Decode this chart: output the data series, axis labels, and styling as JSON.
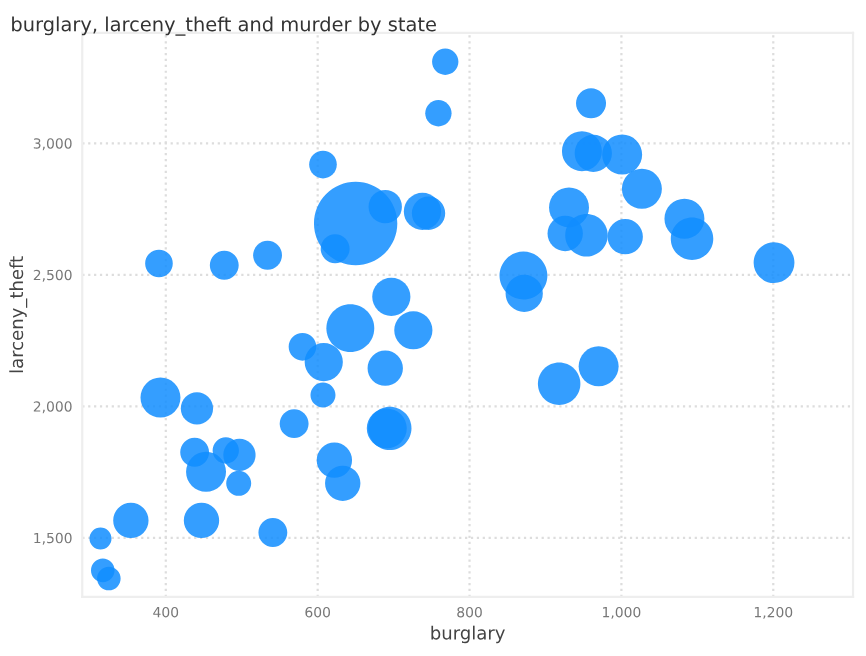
{
  "chart_data": {
    "type": "bubble",
    "title": "burglary, larceny_theft and murder by state",
    "xlabel": "burglary",
    "ylabel": "larceny_theft",
    "color": "#118dff",
    "x": [
      768,
      759,
      607,
      650,
      689,
      623,
      738,
      746,
      391,
      477,
      534,
      960,
      948,
      963,
      1001,
      1027,
      931,
      926,
      954,
      1005,
      1083,
      1093,
      1201,
      871,
      872,
      697,
      643,
      726,
      580,
      608,
      689,
      607,
      393,
      441,
      569,
      695,
      691,
      438,
      479,
      497,
      622,
      453,
      496,
      633,
      354,
      447,
      541,
      314,
      317,
      325,
      918,
      970
    ],
    "values": [
      3310,
      3114,
      2919,
      2695,
      2759,
      2599,
      2741,
      2734,
      2543,
      2536,
      2574,
      3152,
      2970,
      2962,
      2957,
      2827,
      2756,
      2657,
      2650,
      2645,
      2713,
      2637,
      2546,
      2497,
      2429,
      2416,
      2297,
      2289,
      2226,
      2168,
      2145,
      2043,
      2033,
      1992,
      1934,
      1916,
      1916,
      1825,
      1832,
      1815,
      1795,
      1751,
      1707,
      1707,
      1566,
      1566,
      1520,
      1497,
      1376,
      1345,
      2086,
      2152
    ],
    "sizes": [
      0.1,
      0.1,
      0.11,
      1,
      0.16,
      0.12,
      0.2,
      0.16,
      0.11,
      0.12,
      0.12,
      0.13,
      0.23,
      0.2,
      0.23,
      0.23,
      0.23,
      0.18,
      0.26,
      0.18,
      0.23,
      0.26,
      0.24,
      0.33,
      0.2,
      0.21,
      0.33,
      0.21,
      0.11,
      0.21,
      0.18,
      0.09,
      0.23,
      0.15,
      0.12,
      0.27,
      0.23,
      0.12,
      0.1,
      0.15,
      0.18,
      0.23,
      0.09,
      0.18,
      0.18,
      0.18,
      0.12,
      0.07,
      0.08,
      0.08,
      0.26,
      0.23
    ],
    "xlim": [
      290,
      1305
    ],
    "ylim": [
      1275,
      3420
    ],
    "xticks": [
      400,
      600,
      800,
      {
        "value": 1000,
        "label": "1,000"
      },
      {
        "value": 1200,
        "label": "1,200"
      }
    ],
    "yticks": [
      {
        "value": 1500,
        "label": "1,500"
      },
      {
        "value": 2000,
        "label": "2,000"
      },
      {
        "value": 2500,
        "label": "2,500"
      },
      {
        "value": 3000,
        "label": "3,000"
      }
    ],
    "grid": true,
    "legend": false
  }
}
